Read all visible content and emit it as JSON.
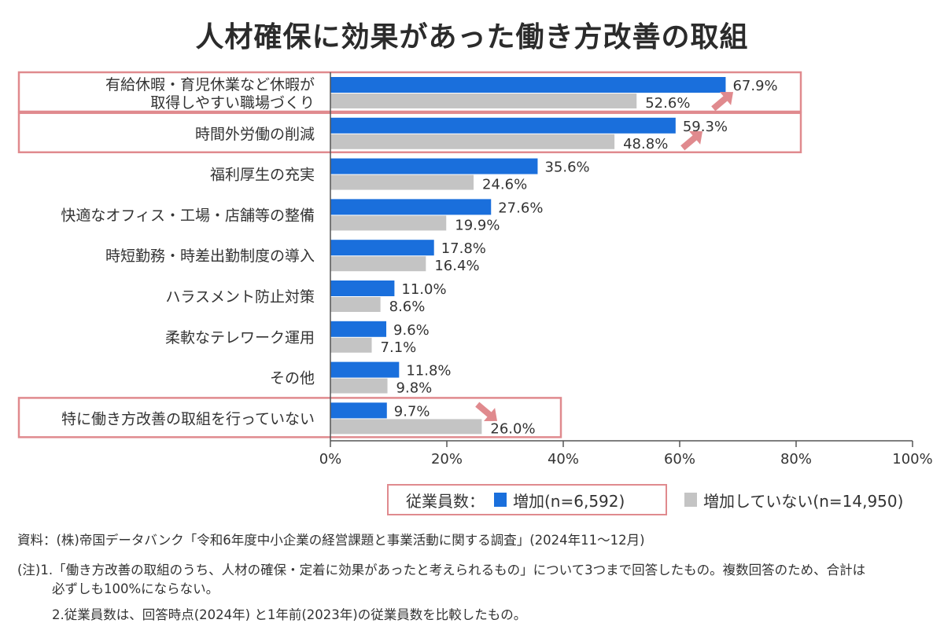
{
  "title": "人材確保に効果があった働き方改善の取組",
  "chart_data": {
    "type": "bar",
    "orientation": "horizontal",
    "title": "人材確保に効果があった働き方改善の取組",
    "xlabel": "",
    "ylabel": "",
    "xlim": [
      0,
      100
    ],
    "xticks": [
      "0%",
      "20%",
      "40%",
      "60%",
      "80%",
      "100%"
    ],
    "xtick_values": [
      0,
      20,
      40,
      60,
      80,
      100
    ],
    "grid": false,
    "legend_position": "bottom-right",
    "categories": [
      [
        "有給休暇・育児休業など休暇が",
        "取得しやすい職場づくり"
      ],
      [
        "時間外労働の削減"
      ],
      [
        "福利厚生の充実"
      ],
      [
        "快適なオフィス・工場・店舗等の整備"
      ],
      [
        "時短勤務・時差出勤制度の導入"
      ],
      [
        "ハラスメント防止対策"
      ],
      [
        "柔軟なテレワーク運用"
      ],
      [
        "その他"
      ],
      [
        "特に働き方改善の取組を行っていない"
      ]
    ],
    "series": [
      {
        "name": "増加(n=6,592)",
        "color": "#1a6fdc",
        "values": [
          67.9,
          59.3,
          35.6,
          27.6,
          17.8,
          11.0,
          9.6,
          11.8,
          9.7
        ],
        "labels": [
          "67.9%",
          "59.3%",
          "35.6%",
          "27.6%",
          "17.8%",
          "11.0%",
          "9.6%",
          "11.8%",
          "9.7%"
        ]
      },
      {
        "name": "増加していない(n=14,950)",
        "color": "#c4c4c4",
        "values": [
          52.6,
          48.8,
          24.6,
          19.9,
          16.4,
          8.6,
          7.1,
          9.8,
          26.0
        ],
        "labels": [
          "52.6%",
          "48.8%",
          "24.6%",
          "19.9%",
          "16.4%",
          "8.6%",
          "7.1%",
          "9.8%",
          "26.0%"
        ]
      }
    ],
    "highlighted_categories": [
      0,
      1,
      8
    ],
    "annotations": [
      {
        "category": 0,
        "type": "arrow-up-right",
        "meaning": "increase"
      },
      {
        "category": 1,
        "type": "arrow-up-right",
        "meaning": "increase"
      },
      {
        "category": 8,
        "type": "arrow-down-right",
        "meaning": "decrease"
      }
    ],
    "highlight_color": "#e08a8e"
  },
  "legend": {
    "prefix": "従業員数：",
    "items": [
      {
        "label": "増加(n=6,592)",
        "color": "#1a6fdc"
      },
      {
        "label": "増加していない(n=14,950)",
        "color": "#c4c4c4"
      }
    ]
  },
  "notes": {
    "source": "資料：(株)帝国データバンク「令和6年度中小企業の経営課題と事業活動に関する調査」(2024年11〜12月)",
    "note1_line1": "(注)1.「働き方改善の取組のうち、人材の確保・定着に効果があったと考えられるもの」について3つまで回答したもの。複数回答のため、合計は",
    "note1_line2": "必ずしも100%にならない。",
    "note2": "2.従業員数は、回答時点(2024年) と1年前(2023年)の従業員数を比較したもの。"
  }
}
